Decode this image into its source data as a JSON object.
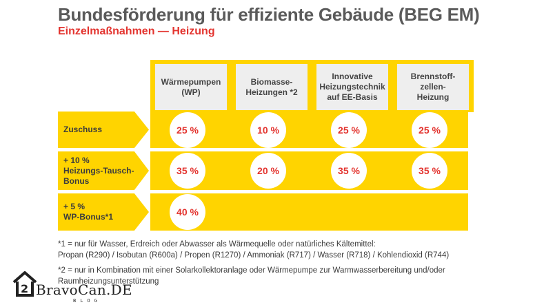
{
  "title": "Bundesförderung für effiziente Gebäude (BEG EM)",
  "subtitle": "Einzelmaßnahmen — Heizung",
  "columns": [
    "Wärmepumpen\n(WP)",
    "Biomasse-\nHeizungen *2",
    "Innovative\nHeizungstechnik\nauf EE-Basis",
    "Brennstoff-\nzellen-\nHeizung"
  ],
  "rows": [
    {
      "label": "Zuschuss",
      "values": [
        "25 %",
        "10 %",
        "25 %",
        "25 %"
      ]
    },
    {
      "label": "+ 10 %\nHeizungs-Tausch-\nBonus",
      "values": [
        "35 %",
        "20 %",
        "35 %",
        "35 %"
      ]
    },
    {
      "label": "+ 5 %\nWP-Bonus*1",
      "values": [
        "40 %"
      ]
    }
  ],
  "footnotes": {
    "note1_line1": "*1 = nur für Wasser, Erdreich oder Abwasser als Wärmequelle oder natürliches Kältemittel:",
    "note1_line2": "Propan (R290) / Isobutan (R600a) / Propen (R1270) / Ammoniak (R717) / Wasser (R718) / Kohlendioxid (R744)",
    "note2_line1": "*2 = nur in Kombination mit einer Solarkollektoranlage oder Wärmepumpe zur Warmwasserbereitung und/oder",
    "note2_line2": "Raumheizungsunterstützung"
  },
  "watermark": {
    "brand": "BravoCan.DE",
    "tag": "BLOG",
    "icon": "house-logo-icon"
  },
  "colors": {
    "accent_yellow": "#ffd400",
    "value_red": "#e3342f",
    "title_gray": "#5a5a5a",
    "header_gray": "#eeeeee"
  }
}
